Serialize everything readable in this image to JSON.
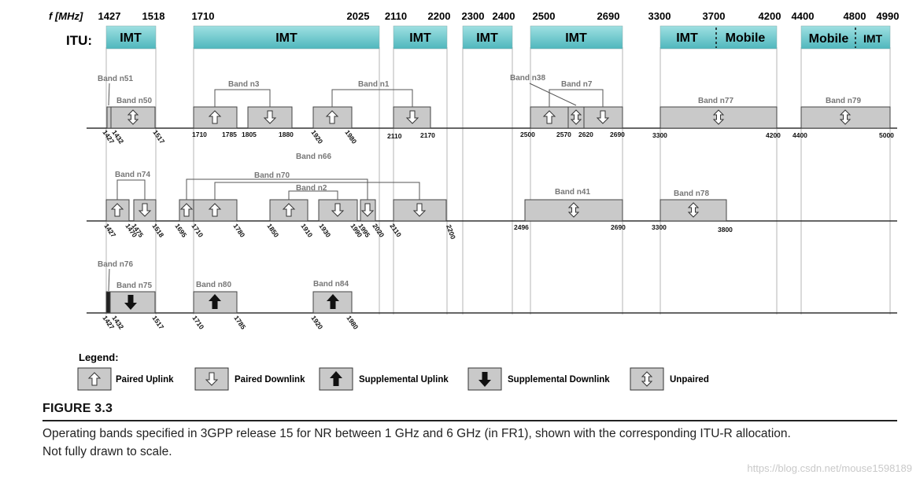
{
  "axis": {
    "f_label": "f [MHz]",
    "ticks": [
      "1427",
      "1518",
      "1710",
      "2025",
      "2110",
      "2200",
      "2300",
      "2400",
      "2500",
      "2690",
      "3300",
      "3700",
      "4200",
      "4400",
      "4800",
      "4990"
    ]
  },
  "itu": {
    "label": "ITU:",
    "blocks": [
      {
        "label": "IMT"
      },
      {
        "label": "IMT"
      },
      {
        "label": "IMT"
      },
      {
        "label": "IMT"
      },
      {
        "label": "IMT"
      },
      {
        "label": "IMT"
      },
      {
        "label": "Mobile"
      },
      {
        "label": "Mobile"
      },
      {
        "label": "IMT"
      }
    ]
  },
  "row1": {
    "bands": [
      "Band n51",
      "Band n50",
      "Band n3",
      "Band n1",
      "Band n38",
      "Band n7",
      "Band n77",
      "Band n79"
    ],
    "freqs": [
      "1427",
      "1432",
      "1517",
      "1710",
      "1785",
      "1805",
      "1880",
      "1920",
      "1980",
      "2110",
      "2170",
      "2500",
      "2570",
      "2620",
      "2690",
      "3300",
      "4200",
      "4400",
      "5000"
    ]
  },
  "row2": {
    "bands": [
      "Band n66",
      "Band n74",
      "Band n70",
      "Band n2",
      "Band n41",
      "Band n78"
    ],
    "freqs": [
      "1427",
      "1470",
      "1475",
      "1518",
      "1695",
      "1710",
      "1780",
      "1850",
      "1910",
      "1930",
      "1990",
      "1995",
      "2020",
      "2110",
      "2200",
      "2496",
      "2690",
      "3300",
      "3800"
    ]
  },
  "row3": {
    "bands": [
      "Band n76",
      "Band n75",
      "Band n80",
      "Band n84"
    ],
    "freqs": [
      "1427",
      "1432",
      "1517",
      "1710",
      "1785",
      "1920",
      "1980"
    ]
  },
  "legend": {
    "title": "Legend:",
    "items": [
      {
        "label": "Paired Uplink",
        "icon": "paired-uplink-icon"
      },
      {
        "label": "Paired Downlink",
        "icon": "paired-downlink-icon"
      },
      {
        "label": "Supplemental Uplink",
        "icon": "supplemental-uplink-icon"
      },
      {
        "label": "Supplemental Downlink",
        "icon": "supplemental-downlink-icon"
      },
      {
        "label": "Unpaired",
        "icon": "unpaired-icon"
      }
    ]
  },
  "figure": {
    "title": "FIGURE 3.3",
    "caption_line1": "Operating bands specified in 3GPP release 15 for NR between 1 GHz and 6 GHz (in FR1), shown with the corresponding ITU-R allocation.",
    "caption_line2": "Not fully drawn to scale."
  },
  "watermark": "https://blog.csdn.net/mouse1598189",
  "colors": {
    "itu_fill": "#7fd0d4",
    "band_fill": "#c9c9c9",
    "guide_line": "#b5b5b5"
  }
}
